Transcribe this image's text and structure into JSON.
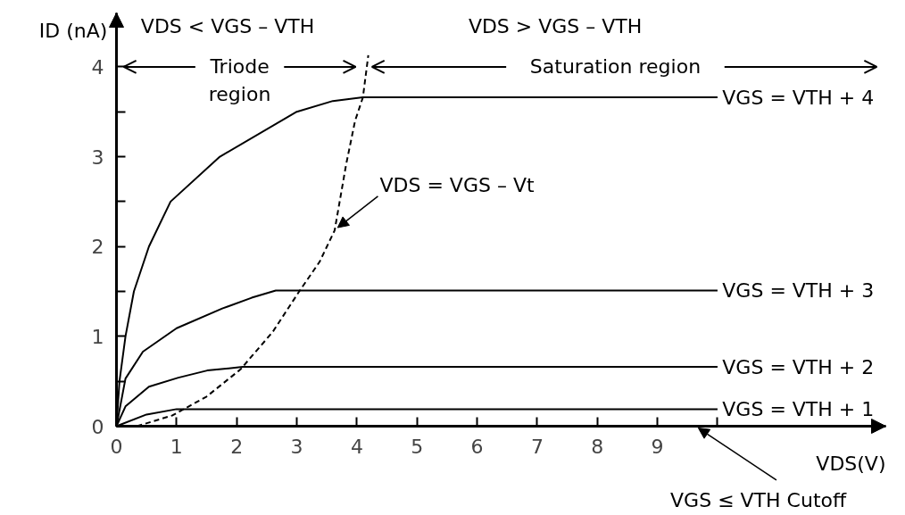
{
  "chart_data": {
    "type": "line",
    "xlabel": "VDS(V)",
    "ylabel": "ID (nA)",
    "xlim": [
      0,
      12.8
    ],
    "ylim": [
      0,
      4.6
    ],
    "xticks": [
      0,
      1,
      2,
      3,
      4,
      5,
      6,
      7,
      8,
      9,
      {
        "value": 10,
        "label": null
      }
    ],
    "yticks": [
      0,
      {
        "value": 0.5,
        "label": null
      },
      1,
      {
        "value": 1.5,
        "label": null
      },
      2,
      {
        "value": 2.5,
        "label": null
      },
      3,
      {
        "value": 3.5,
        "label": null
      },
      4
    ],
    "series": [
      {
        "name": "VGS = VTH + 4",
        "color": "#000000",
        "x": [
          0,
          0.05,
          0.15,
          0.29,
          0.54,
          0.9,
          1.72,
          3.0,
          3.6,
          4.1,
          10
        ],
        "values": [
          0,
          0.5,
          1.0,
          1.5,
          2.0,
          2.5,
          3.0,
          3.5,
          3.62,
          3.66,
          3.66
        ]
      },
      {
        "name": "VGS = VTH + 3",
        "color": "#000000",
        "x": [
          0,
          0.15,
          0.44,
          1.0,
          1.76,
          2.25,
          2.65,
          10
        ],
        "values": [
          0,
          0.53,
          0.83,
          1.09,
          1.31,
          1.43,
          1.51,
          1.51
        ]
      },
      {
        "name": "VGS = VTH + 2",
        "color": "#000000",
        "x": [
          0,
          0.15,
          0.54,
          1.03,
          1.51,
          2.1,
          10
        ],
        "values": [
          0,
          0.22,
          0.44,
          0.54,
          0.62,
          0.66,
          0.66
        ]
      },
      {
        "name": "VGS = VTH + 1",
        "color": "#000000",
        "x": [
          0,
          0.5,
          1.0,
          10
        ],
        "values": [
          0,
          0.13,
          0.19,
          0.19
        ]
      },
      {
        "color": "#000000",
        "line_style": "dashed",
        "x": [
          0.34,
          0.93,
          1.5,
          2.06,
          2.6,
          3.04,
          3.38,
          3.63,
          3.82,
          3.97,
          4.1,
          4.19
        ],
        "values": [
          0,
          0.12,
          0.33,
          0.63,
          1.05,
          1.5,
          1.83,
          2.18,
          2.91,
          3.4,
          3.66,
          4.13
        ]
      }
    ],
    "annotations": [
      "VDS < VGS – VTH",
      "Triode region",
      "VDS > VGS – VTH",
      "Saturation region",
      {
        "text": "VDS = VGS – Vt",
        "x": 3.63,
        "y": 2.18
      },
      "VGS ≤ VTH  Cutoff"
    ]
  }
}
